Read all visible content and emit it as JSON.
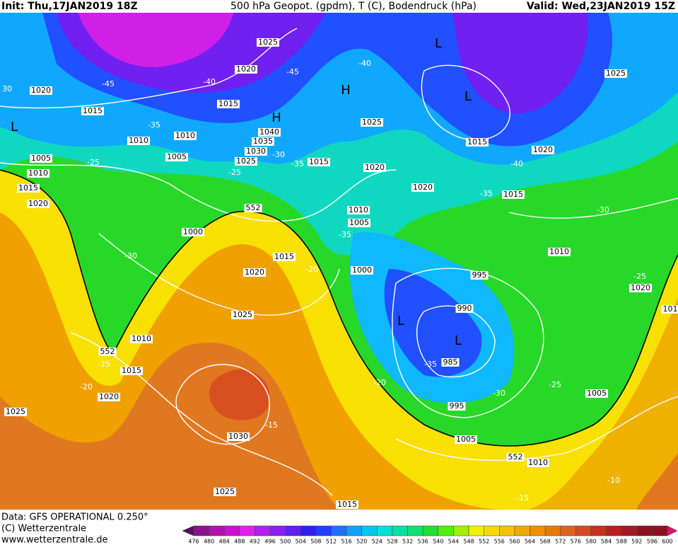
{
  "header": {
    "init": "Init: Thu,17JAN2019 18Z",
    "title": "500 hPa Geopot. (gpdm), T (C), Bodendruck (hPa)",
    "valid": "Valid: Wed,23JAN2019 15Z"
  },
  "footer": {
    "source": "Data: GFS OPERATIONAL 0.250°",
    "copyright": "(C) Wetterzentrale",
    "url": "www.wetterzentrale.de"
  },
  "legend": {
    "ticks": [
      476,
      480,
      484,
      488,
      492,
      496,
      500,
      504,
      508,
      512,
      516,
      520,
      524,
      528,
      532,
      536,
      540,
      544,
      548,
      552,
      556,
      560,
      564,
      568,
      572,
      576,
      580,
      584,
      588,
      592,
      596,
      600
    ],
    "colors": [
      "#5a0a5a",
      "#8a1090",
      "#b010b0",
      "#d010d0",
      "#e020f0",
      "#b020f0",
      "#8a20f0",
      "#6020f0",
      "#3020f0",
      "#2040ff",
      "#2070ff",
      "#10a0ff",
      "#00c8f0",
      "#00e0d8",
      "#00e0a0",
      "#10e070",
      "#20e030",
      "#50f010",
      "#a0f000",
      "#f0f000",
      "#f8d800",
      "#f8c000",
      "#f0a800",
      "#f09000",
      "#e87800",
      "#e06020",
      "#d84820",
      "#c83020",
      "#b82020",
      "#a81828",
      "#901020",
      "#e0106a"
    ]
  },
  "map": {
    "pressure_labels": [
      "1025",
      "1020",
      "1020",
      "1015",
      "1015",
      "1010",
      "1010",
      "1040",
      "1035",
      "1030",
      "1025",
      "1005",
      "1005",
      "1010",
      "1015",
      "1020",
      "1015",
      "1025",
      "1020",
      "1015",
      "1020",
      "1025",
      "1020",
      "1015",
      "1010",
      "1005",
      "1000",
      "1015",
      "1010",
      "1020",
      "1000",
      "995",
      "990",
      "985",
      "1025",
      "1010",
      "1015",
      "1020",
      "1025",
      "1030",
      "995",
      "1005",
      "1005",
      "1010",
      "1020",
      "101",
      "1025",
      "1015"
    ],
    "temperature_labels": [
      "-45",
      "-40",
      "-45",
      "-40",
      "-35",
      "-30",
      "-35",
      "-25",
      "-25",
      "30",
      "-35",
      "-40",
      "-30",
      "-35",
      "-20",
      "-30",
      "-25",
      "-25",
      "-20",
      "-35",
      "-20",
      "-30",
      "-25",
      "-15",
      "-10",
      "-15"
    ],
    "height_labels": [
      "552",
      "552",
      "552"
    ],
    "centers": [
      "L",
      "H",
      "H",
      "L",
      "L",
      "L",
      "L"
    ]
  }
}
